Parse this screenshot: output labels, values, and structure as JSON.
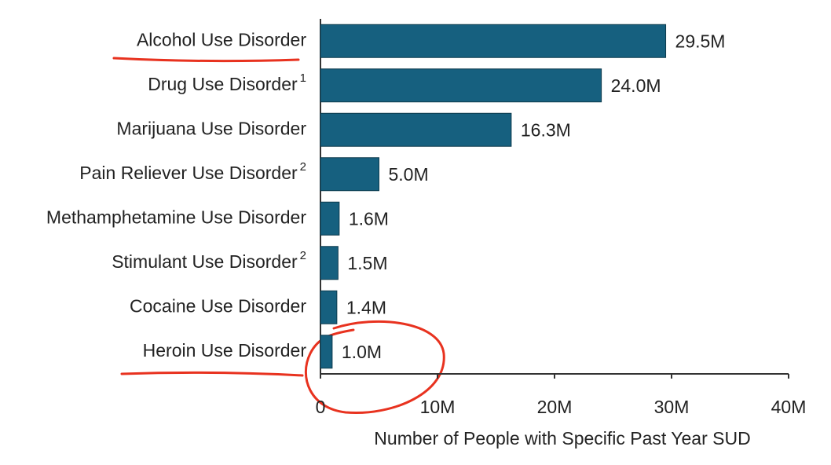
{
  "chart_data": {
    "type": "barh",
    "categories": [
      "Alcohol Use Disorder",
      "Drug Use Disorder",
      "Marijuana Use Disorder",
      "Pain Reliever Use Disorder",
      "Methamphetamine Use Disorder",
      "Stimulant Use Disorder",
      "Cocaine Use Disorder",
      "Heroin Use Disorder"
    ],
    "footnote_marks": [
      null,
      "1",
      null,
      "2",
      null,
      "2",
      null,
      null
    ],
    "values": [
      29.5,
      24.0,
      16.3,
      5.0,
      1.6,
      1.5,
      1.4,
      1.0
    ],
    "value_labels": [
      "29.5M",
      "24.0M",
      "16.3M",
      "5.0M",
      "1.6M",
      "1.5M",
      "1.4M",
      "1.0M"
    ],
    "color": "#16607f",
    "xlim": [
      0,
      40
    ],
    "xticks": [
      0,
      {
        "value": 10,
        "label": "10M"
      },
      {
        "value": 20,
        "label": "20M"
      },
      {
        "value": 30,
        "label": "30M"
      },
      {
        "value": 40,
        "label": "40M"
      }
    ],
    "xlabel": "Number of People with Specific Past Year SUD"
  }
}
